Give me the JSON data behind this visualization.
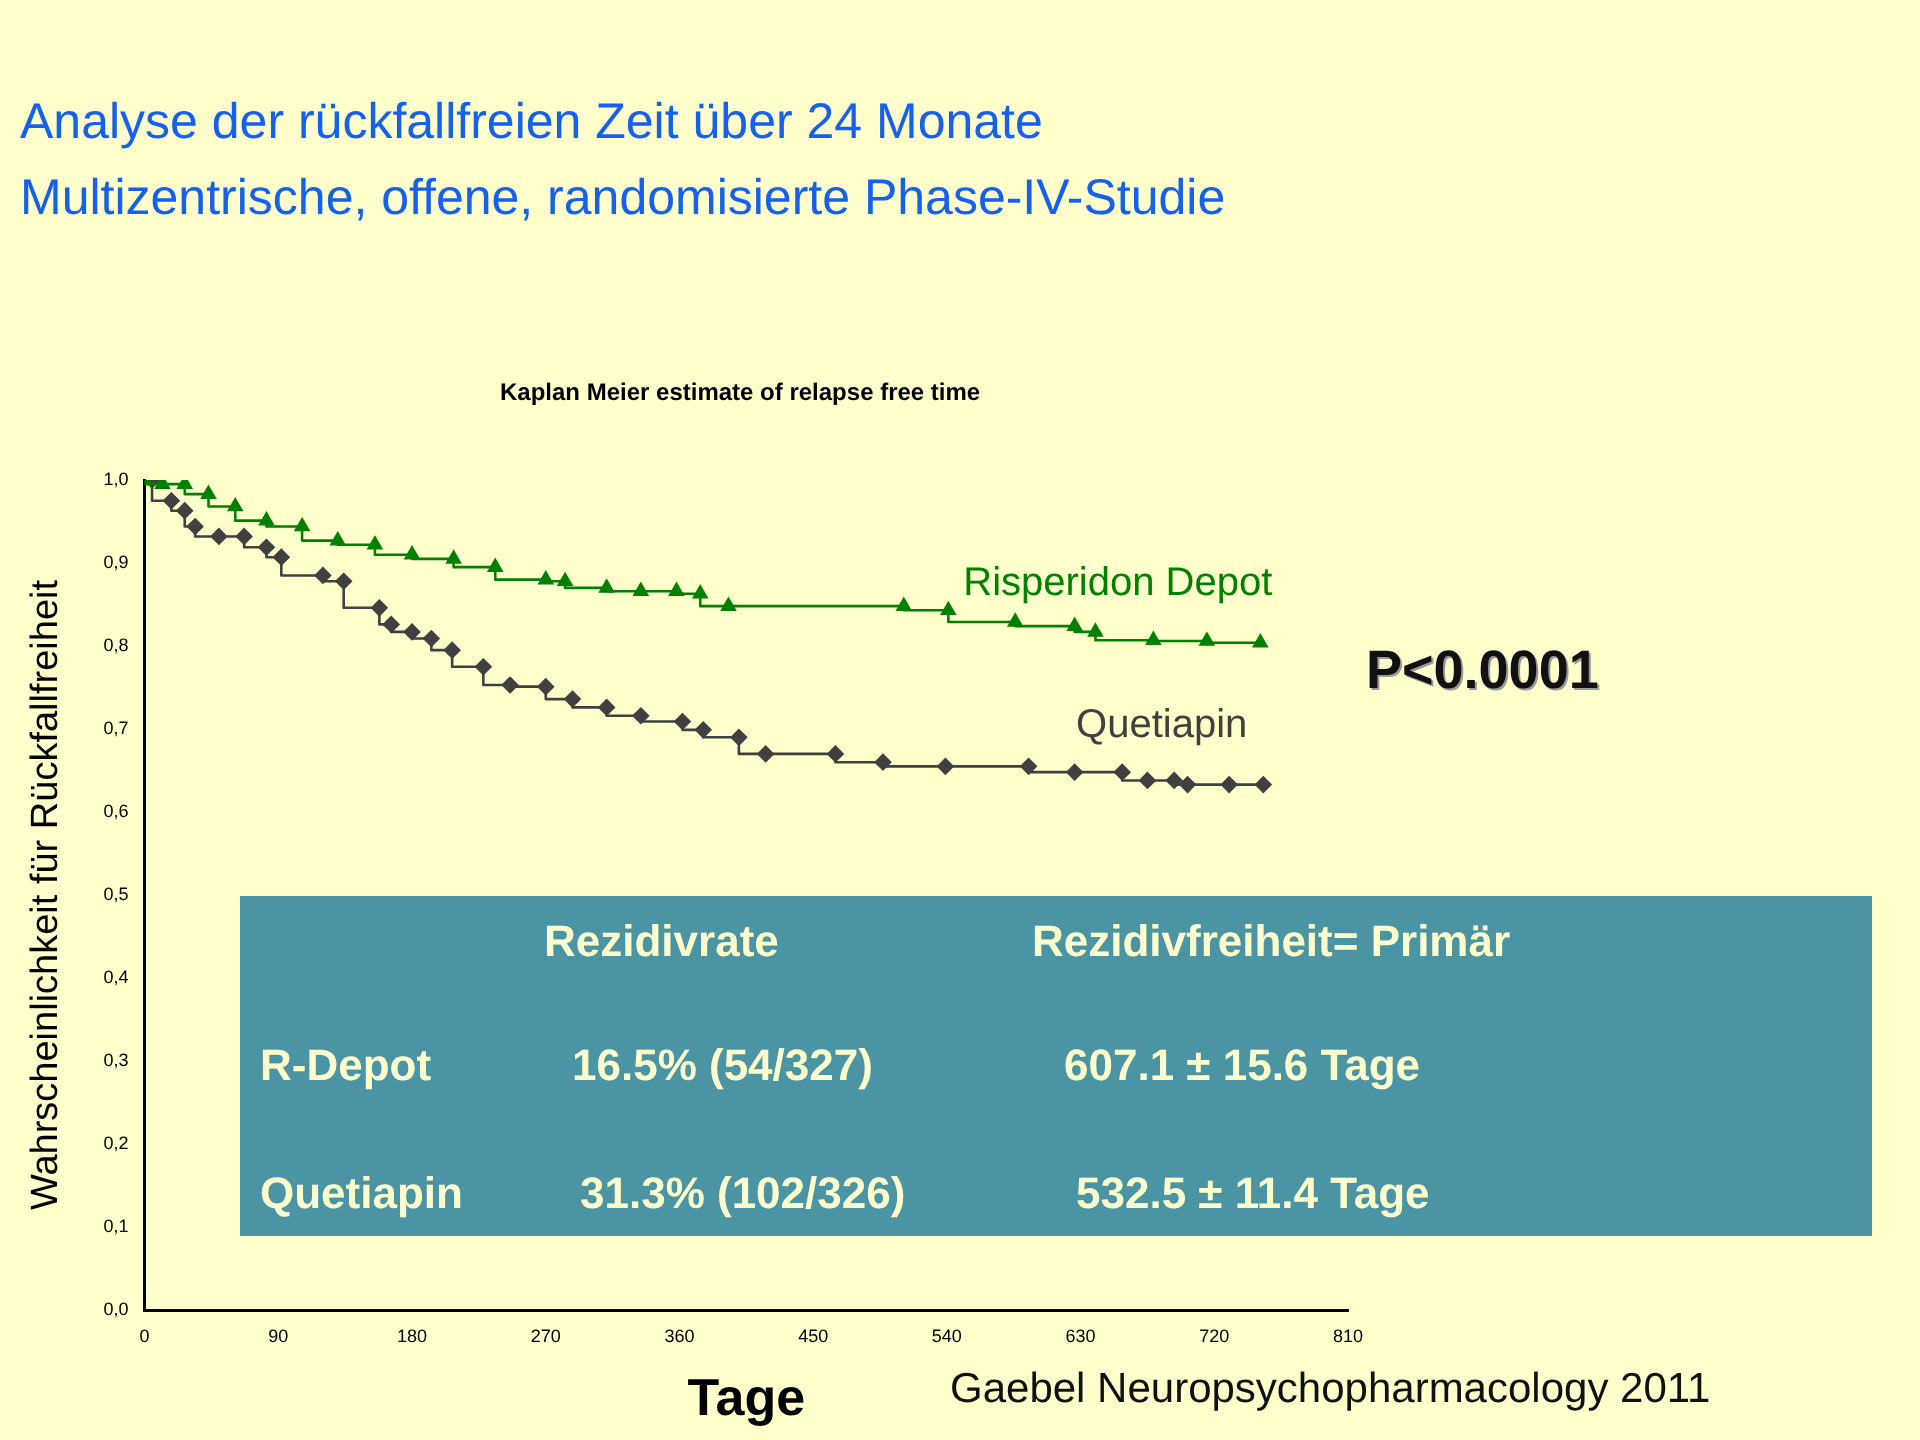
{
  "chart_data": {
    "type": "step",
    "title": "Analyse der rückfallfreien Zeit über 24 Monate",
    "subtitle": "Multizentrische, offene, randomisierte Phase-IV-Studie",
    "xlabel": "Tage",
    "ylabel": "Wahrscheinlichkeit für Rückfallfreiheit",
    "annotations": [
      "Kaplan Meier estimate of relapse free time",
      "P<0.0001",
      "Rezidivrate",
      "Rezidivfreiheit= Primär",
      "R-Depot",
      "16.5% (54/327)",
      "607.1 ± 15.6 Tage",
      "Quetiapin",
      "31.3% (102/326)",
      "532.5 ± 11.4 Tage",
      "Gaebel Neuropsychopharmacology 2011"
    ],
    "series": [
      {
        "name": "Risperidon Depot",
        "color": "#008000",
        "marker": "triangle",
        "x": [
          0,
          12,
          27,
          43,
          61,
          82,
          106,
          130,
          155,
          180,
          208,
          236,
          270,
          283,
          311,
          334,
          358,
          374,
          393,
          511,
          541,
          586,
          626,
          640,
          679,
          715,
          751
        ],
        "values": [
          1.0,
          0.995,
          0.995,
          0.983,
          0.968,
          0.951,
          0.944,
          0.927,
          0.922,
          0.91,
          0.905,
          0.895,
          0.88,
          0.878,
          0.87,
          0.866,
          0.866,
          0.863,
          0.848,
          0.848,
          0.843,
          0.829,
          0.824,
          0.817,
          0.807,
          0.806,
          0.804
        ]
      },
      {
        "name": "Quetiapin",
        "color": "#404040",
        "marker": "diamond",
        "x": [
          5,
          18,
          27,
          34,
          50,
          67,
          82,
          92,
          120,
          134,
          158,
          166,
          180,
          193,
          207,
          228,
          246,
          270,
          288,
          311,
          334,
          362,
          376,
          400,
          418,
          465,
          497,
          539,
          595,
          626,
          658,
          675,
          693,
          702,
          730,
          753
        ],
        "values": [
          1.0,
          0.975,
          0.963,
          0.944,
          0.932,
          0.932,
          0.919,
          0.907,
          0.885,
          0.878,
          0.846,
          0.826,
          0.817,
          0.809,
          0.795,
          0.775,
          0.753,
          0.751,
          0.736,
          0.726,
          0.716,
          0.709,
          0.699,
          0.69,
          0.67,
          0.67,
          0.66,
          0.655,
          0.655,
          0.648,
          0.648,
          0.638,
          0.638,
          0.633,
          0.633,
          0.633
        ]
      }
    ],
    "xlim": [
      0,
      810
    ],
    "xticks": [
      0,
      90,
      180,
      270,
      360,
      450,
      540,
      630,
      720,
      810
    ],
    "ylim": [
      0,
      1
    ],
    "yticks": [
      {
        "value": 0,
        "label": "0,0"
      },
      {
        "value": 0.1,
        "label": "0,1"
      },
      {
        "value": 0.2,
        "label": "0,2"
      },
      {
        "value": 0.3,
        "label": "0,3"
      },
      {
        "value": 0.4,
        "label": "0,4"
      },
      {
        "value": 0.5,
        "label": "0,5"
      },
      {
        "value": 0.6,
        "label": "0,6"
      },
      {
        "value": 0.7,
        "label": "0,7"
      },
      {
        "value": 0.8,
        "label": "0,8"
      },
      {
        "value": 0.9,
        "label": "0,9"
      },
      {
        "value": 1.0,
        "label": "1,0"
      }
    ],
    "grid": false,
    "legend": false
  }
}
